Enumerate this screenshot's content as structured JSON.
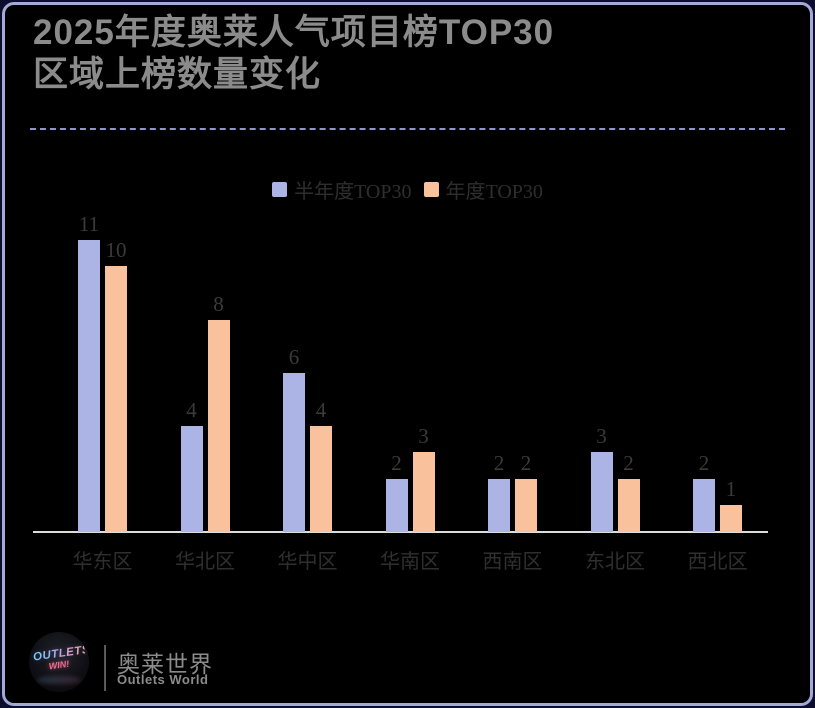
{
  "header": {
    "title_line1": "2025年度奥莱人气项目榜TOP30",
    "title_line2": "区域上榜数量变化"
  },
  "chart_data": {
    "type": "bar",
    "title": "2025年度奥莱人气项目榜TOP30 区域上榜数量变化",
    "categories": [
      "华东区",
      "华北区",
      "华中区",
      "华南区",
      "西南区",
      "东北区",
      "西北区"
    ],
    "series": [
      {
        "name": "半年度TOP30",
        "color": "#abb4e4",
        "values": [
          11,
          4,
          6,
          2,
          2,
          3,
          2
        ]
      },
      {
        "name": "年度TOP30",
        "color": "#fac29c",
        "values": [
          10,
          8,
          4,
          3,
          2,
          2,
          1
        ]
      }
    ],
    "ylim": [
      0,
      11
    ],
    "value_labels": true,
    "grid": false,
    "legend_position": "top"
  },
  "footer": {
    "logo_word1": "OUTLETS",
    "logo_word2": "WIN!",
    "brand_cn": "奥莱世界",
    "brand_en": "Outlets World"
  },
  "colors": {
    "background": "#000000",
    "outer_background": "#0d0d2e",
    "card_border": "#a2aad6",
    "divider_dashed": "#8d95c9",
    "series_half_year": "#abb4e4",
    "series_full_year": "#fac29c",
    "title_text": "#8b8b8b",
    "label_text": "#3a3a3a",
    "baseline": "#dcdcdc"
  }
}
